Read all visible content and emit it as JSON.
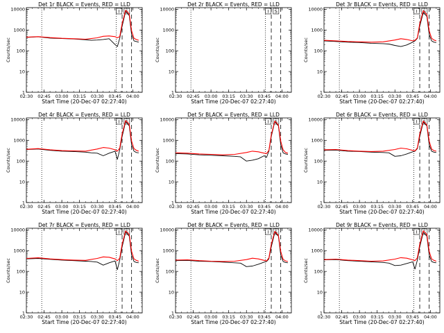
{
  "chart_data": {
    "type": "line",
    "x_axis": {
      "label": "Start Time (20-Dec-07 02:27:40)",
      "tick_labels": [
        "02:30",
        "02:45",
        "03:00",
        "03:15",
        "03:30",
        "03:45",
        "04:00"
      ],
      "range": [
        "02:30",
        "04:08"
      ]
    },
    "y_axis": {
      "label": "Counts/sec",
      "scale": "log",
      "range": [
        1,
        12000
      ],
      "tick_labels": [
        "1",
        "10",
        "100",
        "1000",
        "10000"
      ]
    },
    "series_colors": {
      "events": "#000000",
      "lld": "#ff0000"
    },
    "marker_lines": {
      "dotted_times": [
        "02:43",
        "03:46"
      ],
      "dashed_times": [
        "03:51",
        "03:59"
      ],
      "flag_labels": [
        "I",
        "S"
      ]
    },
    "panels": [
      {
        "title": "Det 1r BLACK = Events, RED = LLD",
        "series": [
          {
            "x": [
              "02:30",
              "02:40",
              "02:50",
              "03:00",
              "03:10",
              "03:20",
              "03:25",
              "03:30",
              "03:35",
              "03:40",
              "03:45",
              "03:47",
              "03:49",
              "03:51",
              "03:54",
              "03:57",
              "03:59",
              "04:01",
              "04:03",
              "04:05"
            ],
            "y": [
              440,
              470,
              410,
              390,
              370,
              340,
              320,
              330,
              350,
              380,
              200,
              160,
              400,
              1500,
              8000,
              5000,
              600,
              300,
              280,
              260
            ]
          },
          {
            "x": [
              "02:30",
              "02:40",
              "02:50",
              "03:00",
              "03:10",
              "03:20",
              "03:30",
              "03:35",
              "03:40",
              "03:45",
              "03:47",
              "03:49",
              "03:51",
              "03:54",
              "03:57",
              "03:59",
              "04:01",
              "04:03",
              "04:05"
            ],
            "y": [
              450,
              480,
              430,
              400,
              380,
              360,
              420,
              500,
              520,
              480,
              420,
              480,
              2000,
              9000,
              6000,
              900,
              400,
              350,
              320
            ]
          }
        ]
      },
      {
        "title": "Det 2r BLACK = Events, RED = LLD",
        "series": []
      },
      {
        "title": "Det 3r BLACK = Events, RED = LLD",
        "series": [
          {
            "x": [
              "02:30",
              "02:40",
              "02:50",
              "03:00",
              "03:10",
              "03:20",
              "03:25",
              "03:30",
              "03:35",
              "03:40",
              "03:45",
              "03:47",
              "03:49",
              "03:51",
              "03:54",
              "03:57",
              "03:59",
              "04:01",
              "04:03",
              "04:05"
            ],
            "y": [
              300,
              280,
              260,
              250,
              230,
              220,
              210,
              180,
              160,
              190,
              260,
              300,
              400,
              1500,
              7000,
              4500,
              600,
              300,
              260,
              250
            ]
          },
          {
            "x": [
              "02:30",
              "02:40",
              "02:50",
              "03:00",
              "03:10",
              "03:20",
              "03:30",
              "03:35",
              "03:40",
              "03:45",
              "03:47",
              "03:49",
              "03:51",
              "03:54",
              "03:57",
              "03:59",
              "04:01",
              "04:03",
              "04:05"
            ],
            "y": [
              320,
              300,
              280,
              270,
              260,
              270,
              330,
              380,
              350,
              300,
              320,
              420,
              2000,
              8500,
              5500,
              900,
              400,
              330,
              300
            ]
          }
        ]
      },
      {
        "title": "Det 4r BLACK = Events, RED = LLD",
        "series": [
          {
            "x": [
              "02:30",
              "02:40",
              "02:50",
              "03:00",
              "03:10",
              "03:20",
              "03:25",
              "03:30",
              "03:35",
              "03:40",
              "03:45",
              "03:47",
              "03:49",
              "03:51",
              "03:54",
              "03:57",
              "03:59",
              "04:01",
              "04:03",
              "04:05"
            ],
            "y": [
              360,
              380,
              330,
              300,
              290,
              270,
              250,
              240,
              180,
              240,
              300,
              120,
              350,
              1500,
              8000,
              5000,
              600,
              300,
              260,
              250
            ]
          },
          {
            "x": [
              "02:30",
              "02:40",
              "02:50",
              "03:00",
              "03:10",
              "03:20",
              "03:30",
              "03:35",
              "03:40",
              "03:45",
              "03:47",
              "03:49",
              "03:51",
              "03:54",
              "03:57",
              "03:59",
              "04:01",
              "04:03",
              "04:05"
            ],
            "y": [
              370,
              400,
              350,
              320,
              310,
              300,
              380,
              450,
              420,
              350,
              300,
              420,
              2000,
              9000,
              6000,
              900,
              400,
              330,
              300
            ]
          }
        ]
      },
      {
        "title": "Det 5r BLACK = Events, RED = LLD",
        "series": [
          {
            "x": [
              "02:30",
              "02:40",
              "02:50",
              "03:00",
              "03:10",
              "03:20",
              "03:25",
              "03:30",
              "03:35",
              "03:40",
              "03:45",
              "03:47",
              "03:49",
              "03:51",
              "03:54",
              "03:57",
              "03:59",
              "04:01",
              "04:03",
              "04:05"
            ],
            "y": [
              230,
              220,
              200,
              190,
              180,
              170,
              160,
              100,
              110,
              130,
              180,
              150,
              300,
              1500,
              8000,
              5000,
              600,
              250,
              220,
              210
            ]
          },
          {
            "x": [
              "02:30",
              "02:40",
              "02:50",
              "03:00",
              "03:10",
              "03:20",
              "03:30",
              "03:35",
              "03:40",
              "03:45",
              "03:47",
              "03:49",
              "03:51",
              "03:54",
              "03:57",
              "03:59",
              "04:01",
              "04:03",
              "04:05"
            ],
            "y": [
              250,
              240,
              220,
              210,
              200,
              210,
              260,
              300,
              280,
              240,
              230,
              330,
              1800,
              8500,
              5500,
              900,
              350,
              260,
              240
            ]
          }
        ]
      },
      {
        "title": "Det 6r BLACK = Events, RED = LLD",
        "series": [
          {
            "x": [
              "02:30",
              "02:40",
              "02:50",
              "03:00",
              "03:10",
              "03:20",
              "03:25",
              "03:30",
              "03:35",
              "03:40",
              "03:45",
              "03:47",
              "03:49",
              "03:51",
              "03:54",
              "03:57",
              "03:59",
              "04:01",
              "04:03",
              "04:05"
            ],
            "y": [
              330,
              340,
              300,
              290,
              270,
              260,
              250,
              170,
              180,
              220,
              280,
              300,
              400,
              1500,
              7500,
              5000,
              600,
              300,
              270,
              260
            ]
          },
          {
            "x": [
              "02:30",
              "02:40",
              "02:50",
              "03:00",
              "03:10",
              "03:20",
              "03:30",
              "03:35",
              "03:40",
              "03:45",
              "03:47",
              "03:49",
              "03:51",
              "03:54",
              "03:57",
              "03:59",
              "04:01",
              "04:03",
              "04:05"
            ],
            "y": [
              350,
              360,
              320,
              300,
              290,
              300,
              360,
              420,
              390,
              330,
              310,
              430,
              2000,
              8500,
              5500,
              900,
              380,
              320,
              300
            ]
          }
        ]
      },
      {
        "title": "Det 7r BLACK = Events, RED = LLD",
        "series": [
          {
            "x": [
              "02:30",
              "02:40",
              "02:50",
              "03:00",
              "03:10",
              "03:20",
              "03:25",
              "03:30",
              "03:35",
              "03:40",
              "03:45",
              "03:47",
              "03:49",
              "03:51",
              "03:54",
              "03:57",
              "03:59",
              "04:01",
              "04:03",
              "04:05"
            ],
            "y": [
              400,
              420,
              380,
              350,
              330,
              310,
              300,
              280,
              200,
              260,
              320,
              120,
              350,
              1500,
              8000,
              5000,
              600,
              300,
              270,
              260
            ]
          },
          {
            "x": [
              "02:30",
              "02:40",
              "02:50",
              "03:00",
              "03:10",
              "03:20",
              "03:30",
              "03:35",
              "03:40",
              "03:45",
              "03:47",
              "03:49",
              "03:51",
              "03:54",
              "03:57",
              "03:59",
              "04:01",
              "04:03",
              "04:05"
            ],
            "y": [
              420,
              450,
              400,
              370,
              350,
              340,
              420,
              500,
              480,
              400,
              330,
              430,
              2000,
              9000,
              6000,
              900,
              400,
              340,
              310
            ]
          }
        ]
      },
      {
        "title": "Det 8r BLACK = Events, RED = LLD",
        "series": [
          {
            "x": [
              "02:30",
              "02:40",
              "02:50",
              "03:00",
              "03:10",
              "03:20",
              "03:25",
              "03:30",
              "03:35",
              "03:40",
              "03:45",
              "03:47",
              "03:49",
              "03:51",
              "03:54",
              "03:57",
              "03:59",
              "04:01",
              "04:03",
              "04:05"
            ],
            "y": [
              330,
              340,
              310,
              300,
              280,
              260,
              250,
              170,
              180,
              220,
              280,
              300,
              400,
              1500,
              7500,
              5000,
              600,
              300,
              270,
              260
            ]
          },
          {
            "x": [
              "02:30",
              "02:40",
              "02:50",
              "03:00",
              "03:10",
              "03:20",
              "03:30",
              "03:35",
              "03:40",
              "03:45",
              "03:47",
              "03:49",
              "03:51",
              "03:54",
              "03:57",
              "03:59",
              "04:01",
              "04:03",
              "04:05"
            ],
            "y": [
              350,
              360,
              330,
              310,
              300,
              310,
              370,
              430,
              400,
              340,
              320,
              440,
              2000,
              8500,
              5500,
              900,
              380,
              320,
              300
            ]
          }
        ]
      },
      {
        "title": "Det 9r BLACK = Events, RED = LLD",
        "series": [
          {
            "x": [
              "02:30",
              "02:40",
              "02:50",
              "03:00",
              "03:10",
              "03:20",
              "03:25",
              "03:30",
              "03:35",
              "03:40",
              "03:45",
              "03:47",
              "03:49",
              "03:51",
              "03:54",
              "03:57",
              "03:59",
              "04:01",
              "04:03",
              "04:05"
            ],
            "y": [
              360,
              370,
              330,
              310,
              290,
              270,
              250,
              190,
              200,
              240,
              290,
              130,
              350,
              1500,
              7500,
              5000,
              600,
              300,
              270,
              260
            ]
          },
          {
            "x": [
              "02:30",
              "02:40",
              "02:50",
              "03:00",
              "03:10",
              "03:20",
              "03:30",
              "03:35",
              "03:40",
              "03:45",
              "03:47",
              "03:49",
              "03:51",
              "03:54",
              "03:57",
              "03:59",
              "04:01",
              "04:03",
              "04:05"
            ],
            "y": [
              370,
              390,
              350,
              330,
              310,
              320,
              390,
              460,
              430,
              360,
              330,
              450,
              2000,
              9000,
              6000,
              900,
              400,
              340,
              310
            ]
          }
        ]
      }
    ]
  }
}
